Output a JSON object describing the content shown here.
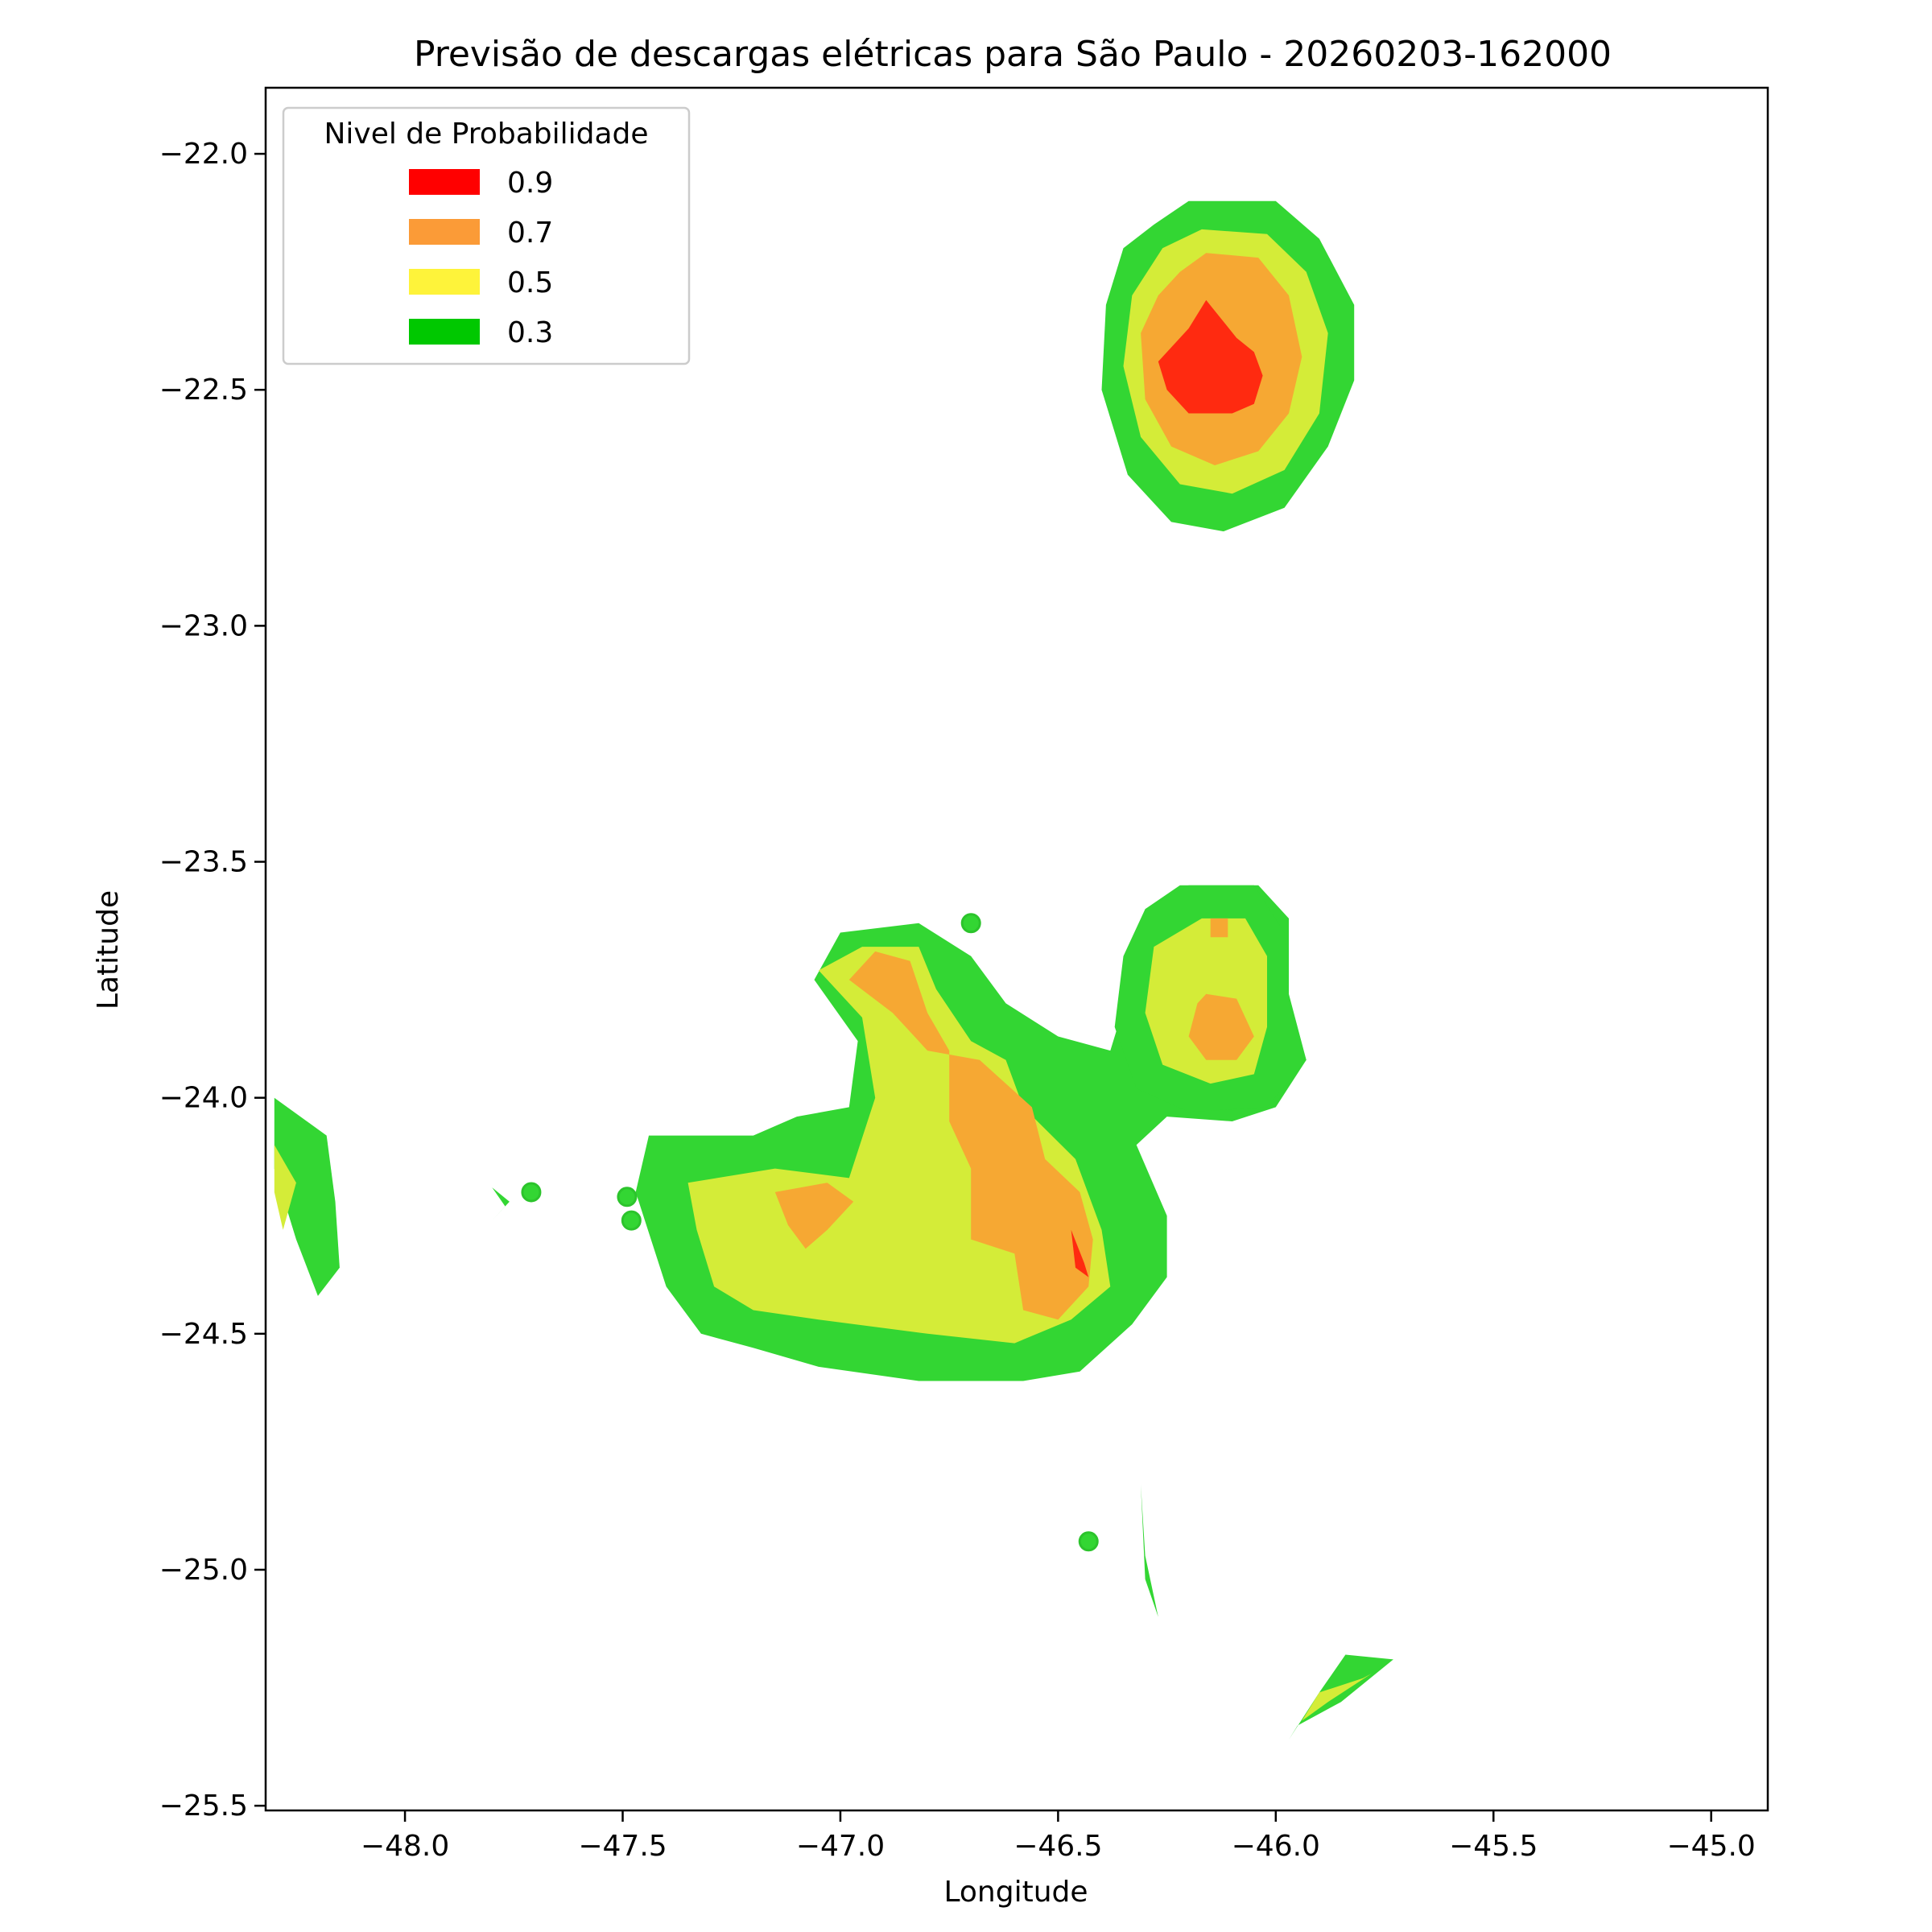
{
  "chart_data": {
    "type": "contour",
    "title": "Previsão de descargas elétricas para São Paulo - 20260203-162000",
    "xlabel": "Longitude",
    "ylabel": "Latitude",
    "xlim": [
      -48.32,
      -44.87
    ],
    "ylim": [
      -25.51,
      -21.86
    ],
    "xticks": [
      -48.0,
      -47.5,
      -47.0,
      -46.5,
      -46.0,
      -45.5,
      -45.0
    ],
    "yticks": [
      -22.0,
      -22.5,
      -23.0,
      -23.5,
      -24.0,
      -24.5,
      -25.0,
      -25.5
    ],
    "xtick_labels": [
      "−48.0",
      "−47.5",
      "−47.0",
      "−46.5",
      "−46.0",
      "−45.5",
      "−45.0"
    ],
    "ytick_labels": [
      "−22.0",
      "−22.5",
      "−23.0",
      "−23.5",
      "−24.0",
      "−24.5",
      "−25.0",
      "−25.5"
    ],
    "grid": false,
    "legend": {
      "title": "Nivel de Probabilidade",
      "placement": "top-left",
      "entries": [
        {
          "label": "0.9",
          "color": "#ff0000"
        },
        {
          "label": "0.7",
          "color": "#fb9b37"
        },
        {
          "label": "0.5",
          "color": "#fef33a"
        },
        {
          "label": "0.3",
          "color": "#00c800"
        }
      ]
    },
    "level_fill_colors": {
      "0.3": "#33d633",
      "0.5": "#d4ec38",
      "0.7": "#f6a833",
      "0.9": "#ff2a10"
    },
    "regions": [
      {
        "level": "0.3",
        "lonlat": [
          [
            -46.28,
            -22.15
          ],
          [
            -46.2,
            -22.1
          ],
          [
            -46.0,
            -22.1
          ],
          [
            -45.9,
            -22.18
          ],
          [
            -45.82,
            -22.32
          ],
          [
            -45.82,
            -22.48
          ],
          [
            -45.88,
            -22.62
          ],
          [
            -45.98,
            -22.75
          ],
          [
            -46.12,
            -22.8
          ],
          [
            -46.24,
            -22.78
          ],
          [
            -46.34,
            -22.68
          ],
          [
            -46.4,
            -22.5
          ],
          [
            -46.39,
            -22.32
          ],
          [
            -46.35,
            -22.2
          ]
        ]
      },
      {
        "level": "0.5",
        "lonlat": [
          [
            -46.26,
            -22.2
          ],
          [
            -46.17,
            -22.16
          ],
          [
            -46.02,
            -22.17
          ],
          [
            -45.93,
            -22.25
          ],
          [
            -45.88,
            -22.38
          ],
          [
            -45.9,
            -22.55
          ],
          [
            -45.98,
            -22.67
          ],
          [
            -46.1,
            -22.72
          ],
          [
            -46.22,
            -22.7
          ],
          [
            -46.31,
            -22.6
          ],
          [
            -46.35,
            -22.45
          ],
          [
            -46.33,
            -22.3
          ]
        ]
      },
      {
        "level": "0.7",
        "lonlat": [
          [
            -46.22,
            -22.25
          ],
          [
            -46.16,
            -22.21
          ],
          [
            -46.04,
            -22.22
          ],
          [
            -45.97,
            -22.3
          ],
          [
            -45.94,
            -22.43
          ],
          [
            -45.97,
            -22.55
          ],
          [
            -46.04,
            -22.63
          ],
          [
            -46.14,
            -22.66
          ],
          [
            -46.24,
            -22.62
          ],
          [
            -46.3,
            -22.52
          ],
          [
            -46.31,
            -22.38
          ],
          [
            -46.27,
            -22.3
          ]
        ]
      },
      {
        "level": "0.9",
        "lonlat": [
          [
            -46.2,
            -22.37
          ],
          [
            -46.16,
            -22.31
          ],
          [
            -46.09,
            -22.39
          ],
          [
            -46.05,
            -22.42
          ],
          [
            -46.03,
            -22.47
          ],
          [
            -46.05,
            -22.53
          ],
          [
            -46.1,
            -22.55
          ],
          [
            -46.2,
            -22.55
          ],
          [
            -46.25,
            -22.5
          ],
          [
            -46.27,
            -22.44
          ]
        ]
      },
      {
        "level": "0.3",
        "lonlat": [
          [
            -47.44,
            -24.08
          ],
          [
            -47.2,
            -24.08
          ],
          [
            -47.1,
            -24.04
          ],
          [
            -46.98,
            -24.02
          ],
          [
            -46.96,
            -23.88
          ],
          [
            -47.06,
            -23.75
          ],
          [
            -47.0,
            -23.65
          ],
          [
            -46.82,
            -23.63
          ],
          [
            -46.7,
            -23.7
          ],
          [
            -46.62,
            -23.8
          ],
          [
            -46.5,
            -23.87
          ],
          [
            -46.38,
            -23.9
          ],
          [
            -46.34,
            -23.78
          ],
          [
            -46.3,
            -23.6
          ],
          [
            -46.22,
            -23.55
          ],
          [
            -46.04,
            -23.55
          ],
          [
            -45.97,
            -23.62
          ],
          [
            -45.97,
            -23.78
          ],
          [
            -45.93,
            -23.92
          ],
          [
            -46.0,
            -24.02
          ],
          [
            -46.1,
            -24.05
          ],
          [
            -46.25,
            -24.04
          ],
          [
            -46.32,
            -24.1
          ],
          [
            -46.25,
            -24.25
          ],
          [
            -46.25,
            -24.38
          ],
          [
            -46.33,
            -24.48
          ],
          [
            -46.45,
            -24.58
          ],
          [
            -46.58,
            -24.6
          ],
          [
            -46.82,
            -24.6
          ],
          [
            -47.05,
            -24.57
          ],
          [
            -47.2,
            -24.53
          ],
          [
            -47.32,
            -24.5
          ],
          [
            -47.4,
            -24.4
          ],
          [
            -47.47,
            -24.2
          ]
        ]
      },
      {
        "level": "0.5",
        "lonlat": [
          [
            -47.35,
            -24.18
          ],
          [
            -47.15,
            -24.15
          ],
          [
            -46.98,
            -24.17
          ],
          [
            -46.92,
            -24.0
          ],
          [
            -46.95,
            -23.83
          ],
          [
            -47.05,
            -23.73
          ],
          [
            -46.95,
            -23.68
          ],
          [
            -46.82,
            -23.68
          ],
          [
            -46.78,
            -23.77
          ],
          [
            -46.7,
            -23.88
          ],
          [
            -46.62,
            -23.92
          ],
          [
            -46.58,
            -24.02
          ],
          [
            -46.46,
            -24.13
          ],
          [
            -46.4,
            -24.28
          ],
          [
            -46.38,
            -24.4
          ],
          [
            -46.47,
            -24.47
          ],
          [
            -46.6,
            -24.52
          ],
          [
            -46.8,
            -24.5
          ],
          [
            -47.05,
            -24.47
          ],
          [
            -47.2,
            -24.45
          ],
          [
            -47.29,
            -24.4
          ],
          [
            -47.33,
            -24.28
          ]
        ]
      },
      {
        "level": "0.7",
        "lonlat": [
          [
            -46.88,
            -23.82
          ],
          [
            -46.98,
            -23.75
          ],
          [
            -46.92,
            -23.69
          ],
          [
            -46.84,
            -23.71
          ],
          [
            -46.8,
            -23.82
          ],
          [
            -46.75,
            -23.9
          ],
          [
            -46.75,
            -24.05
          ],
          [
            -46.7,
            -24.15
          ],
          [
            -46.7,
            -24.3
          ],
          [
            -46.6,
            -24.33
          ],
          [
            -46.58,
            -24.45
          ],
          [
            -46.5,
            -24.47
          ],
          [
            -46.43,
            -24.4
          ],
          [
            -46.42,
            -24.3
          ],
          [
            -46.45,
            -24.2
          ],
          [
            -46.53,
            -24.13
          ],
          [
            -46.56,
            -24.02
          ],
          [
            -46.62,
            -23.97
          ],
          [
            -46.68,
            -23.92
          ],
          [
            -46.8,
            -23.9
          ]
        ]
      },
      {
        "level": "0.7",
        "lonlat": [
          [
            -47.15,
            -24.2
          ],
          [
            -47.03,
            -24.18
          ],
          [
            -46.97,
            -24.22
          ],
          [
            -47.03,
            -24.28
          ],
          [
            -47.08,
            -24.32
          ],
          [
            -47.12,
            -24.27
          ]
        ]
      },
      {
        "level": "0.9",
        "lonlat": [
          [
            -46.47,
            -24.28
          ],
          [
            -46.44,
            -24.35
          ],
          [
            -46.43,
            -24.38
          ],
          [
            -46.46,
            -24.36
          ]
        ]
      },
      {
        "level": "0.3",
        "lonlat": [
          [
            -46.2,
            -23.55
          ],
          [
            -46.05,
            -23.55
          ],
          [
            -45.98,
            -23.65
          ],
          [
            -45.97,
            -23.8
          ],
          [
            -45.93,
            -23.92
          ],
          [
            -46.02,
            -24.02
          ],
          [
            -46.2,
            -24.03
          ],
          [
            -46.32,
            -23.98
          ],
          [
            -46.37,
            -23.85
          ],
          [
            -46.35,
            -23.7
          ],
          [
            -46.3,
            -23.6
          ]
        ]
      },
      {
        "level": "0.5",
        "lonlat": [
          [
            -46.17,
            -23.62
          ],
          [
            -46.07,
            -23.62
          ],
          [
            -46.02,
            -23.7
          ],
          [
            -46.02,
            -23.85
          ],
          [
            -46.05,
            -23.95
          ],
          [
            -46.15,
            -23.97
          ],
          [
            -46.26,
            -23.93
          ],
          [
            -46.3,
            -23.82
          ],
          [
            -46.28,
            -23.68
          ]
        ]
      },
      {
        "level": "0.7",
        "lonlat": [
          [
            -46.16,
            -23.78
          ],
          [
            -46.09,
            -23.79
          ],
          [
            -46.05,
            -23.87
          ],
          [
            -46.09,
            -23.92
          ],
          [
            -46.16,
            -23.92
          ],
          [
            -46.2,
            -23.87
          ],
          [
            -46.18,
            -23.8
          ]
        ]
      },
      {
        "level": "0.7",
        "lonlat": [
          [
            -46.15,
            -23.62
          ],
          [
            -46.11,
            -23.62
          ],
          [
            -46.11,
            -23.66
          ],
          [
            -46.15,
            -23.66
          ]
        ]
      },
      {
        "level": "0.3",
        "lonlat": [
          [
            -48.3,
            -24.0
          ],
          [
            -48.18,
            -24.08
          ],
          [
            -48.16,
            -24.22
          ],
          [
            -48.15,
            -24.36
          ],
          [
            -48.2,
            -24.42
          ],
          [
            -48.25,
            -24.3
          ],
          [
            -48.3,
            -24.15
          ]
        ]
      },
      {
        "level": "0.5",
        "lonlat": [
          [
            -48.3,
            -24.1
          ],
          [
            -48.25,
            -24.18
          ],
          [
            -48.28,
            -24.28
          ],
          [
            -48.3,
            -24.2
          ]
        ]
      },
      {
        "level": "0.3",
        "lonlat": [
          [
            -45.97,
            -25.36
          ],
          [
            -45.9,
            -25.26
          ],
          [
            -45.84,
            -25.18
          ],
          [
            -45.73,
            -25.19
          ],
          [
            -45.85,
            -25.28
          ],
          [
            -45.95,
            -25.33
          ]
        ]
      },
      {
        "level": "0.5",
        "lonlat": [
          [
            -45.94,
            -25.32
          ],
          [
            -45.9,
            -25.26
          ],
          [
            -45.8,
            -25.23
          ],
          [
            -45.78,
            -25.22
          ],
          [
            -45.88,
            -25.28
          ]
        ]
      },
      {
        "level": "0.3",
        "lonlat": [
          [
            -46.31,
            -24.82
          ],
          [
            -46.3,
            -24.97
          ],
          [
            -46.27,
            -25.1
          ],
          [
            -46.3,
            -25.02
          ]
        ]
      },
      {
        "level": "0.3",
        "lonlat": [
          [
            -47.8,
            -24.19
          ],
          [
            -47.76,
            -24.22
          ],
          [
            -47.8,
            -24.26
          ],
          [
            -47.77,
            -24.23
          ]
        ]
      }
    ],
    "dots": [
      {
        "level": "0.3",
        "lon": -46.7,
        "lat": -23.63
      },
      {
        "level": "0.3",
        "lon": -47.71,
        "lat": -24.2
      },
      {
        "level": "0.3",
        "lon": -47.49,
        "lat": -24.21
      },
      {
        "level": "0.3",
        "lon": -47.48,
        "lat": -24.26
      },
      {
        "level": "0.3",
        "lon": -46.43,
        "lat": -24.94
      }
    ]
  }
}
